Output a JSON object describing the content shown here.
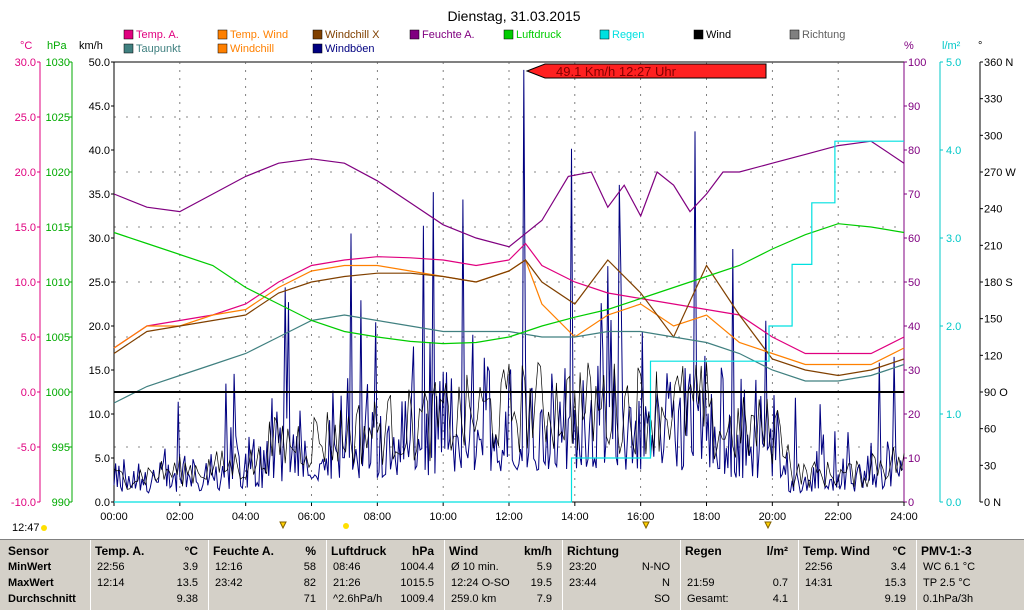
{
  "title": "Dienstag, 31.03.2015",
  "current_time": "12:47",
  "chart_data": {
    "type": "line",
    "x_ticks": [
      "00:00",
      "02:00",
      "04:00",
      "06:00",
      "08:00",
      "10:00",
      "12:00",
      "14:00",
      "16:00",
      "18:00",
      "20:00",
      "22:00",
      "24:00"
    ],
    "axes": {
      "temp_c": {
        "unit": "°C",
        "color": "#e0007f",
        "ticks": [
          "30.0",
          "25.0",
          "20.0",
          "15.0",
          "10.0",
          "5.0",
          "0.0",
          "-5.0",
          "-10.0"
        ],
        "ylim": [
          -10,
          30
        ]
      },
      "pressure_hpa": {
        "unit": "hPa",
        "color": "#00aa00",
        "ticks": [
          "1030",
          "1025",
          "1020",
          "1015",
          "1010",
          "1005",
          "1000",
          "995",
          "990"
        ],
        "ylim": [
          990,
          1030
        ]
      },
      "wind_kmh": {
        "unit": "km/h",
        "color": "#000000",
        "ticks": [
          "50.0",
          "45.0",
          "40.0",
          "35.0",
          "30.0",
          "25.0",
          "20.0",
          "15.0",
          "10.0",
          "5.0",
          "0.0"
        ],
        "ylim": [
          0,
          50
        ]
      },
      "humidity_pct": {
        "unit": "%",
        "color": "#800080",
        "ticks": [
          "100",
          "90",
          "80",
          "70",
          "60",
          "50",
          "40",
          "30",
          "20",
          "10",
          "0"
        ],
        "ylim": [
          0,
          100
        ]
      },
      "rain_lm2": {
        "unit": "l/m²",
        "color": "#00c8c8",
        "ticks": [
          "5.0",
          "4.0",
          "3.0",
          "2.0",
          "1.0",
          "0.0"
        ],
        "ylim": [
          0,
          5
        ]
      },
      "direction_deg": {
        "unit": "°",
        "color": "#000000",
        "ticks": [
          "360 N",
          "330",
          "300",
          "270 W",
          "240",
          "210",
          "180 S",
          "150",
          "120",
          "90 O",
          "60",
          "30",
          "0 N"
        ],
        "ylim": [
          0,
          360
        ]
      }
    },
    "legend": [
      {
        "name": "Temp. A.",
        "color": "#e0007f"
      },
      {
        "name": "Temp. Wind",
        "color": "#ff8000"
      },
      {
        "name": "Windchill X",
        "color": "#804000"
      },
      {
        "name": "Feuchte A.",
        "color": "#800080"
      },
      {
        "name": "Luftdruck",
        "color": "#00cc00"
      },
      {
        "name": "Regen",
        "color": "#00e0e0"
      },
      {
        "name": "Wind",
        "color": "#000000"
      },
      {
        "name": "Richtung",
        "color": "#808080"
      },
      {
        "name": "Taupunkt",
        "color": "#408080"
      },
      {
        "name": "Windchill",
        "color": "#ff8000"
      },
      {
        "name": "Windböen",
        "color": "#000080"
      }
    ],
    "annotation": "49.1 Km/h 12:27 Uhr",
    "series": [
      {
        "name": "Temp. A.",
        "axis": "temp_c",
        "color": "#e0007f",
        "x": [
          0,
          1,
          2,
          3,
          4,
          5,
          6,
          7,
          8,
          9,
          10,
          11,
          12,
          12.5,
          13,
          14,
          15,
          16,
          17,
          18,
          19,
          20,
          21,
          22,
          23,
          24
        ],
        "y": [
          4.0,
          6.0,
          6.5,
          7.0,
          8.0,
          10.0,
          11.5,
          12.0,
          12.3,
          12.2,
          12.0,
          11.5,
          12.0,
          13.5,
          11.5,
          10.0,
          9.0,
          8.5,
          8.0,
          7.5,
          7.0,
          5.0,
          3.5,
          3.5,
          3.5,
          5.0
        ]
      },
      {
        "name": "Temp. Wind",
        "axis": "temp_c",
        "color": "#ff8000",
        "x": [
          0,
          1,
          2,
          3,
          4,
          5,
          6,
          7,
          8,
          9,
          10,
          11,
          12,
          12.5,
          13,
          14,
          15,
          16,
          17,
          18,
          19,
          20,
          21,
          22,
          23,
          24
        ],
        "y": [
          4.0,
          6.0,
          6.0,
          7.0,
          7.5,
          9.5,
          11.0,
          11.5,
          11.5,
          11.0,
          10.5,
          10.0,
          11.0,
          12.0,
          8.0,
          5.0,
          7.0,
          8.0,
          6.0,
          7.0,
          4.5,
          3.5,
          2.5,
          2.5,
          2.5,
          4.0
        ]
      },
      {
        "name": "Windchill X",
        "axis": "temp_c",
        "color": "#804000",
        "x": [
          0,
          1,
          2,
          3,
          4,
          5,
          6,
          7,
          8,
          9,
          10,
          11,
          12,
          12.5,
          13,
          14,
          15,
          16,
          17,
          18,
          19,
          20,
          21,
          22,
          23,
          24
        ],
        "y": [
          3.5,
          5.5,
          6.0,
          6.5,
          7.0,
          9.0,
          10.0,
          10.5,
          10.8,
          10.8,
          10.5,
          10.0,
          11.0,
          12.0,
          10.0,
          8.0,
          12.0,
          9.0,
          5.0,
          11.5,
          7.0,
          3.0,
          2.0,
          1.5,
          2.0,
          3.0
        ]
      },
      {
        "name": "Taupunkt",
        "axis": "temp_c",
        "color": "#408080",
        "x": [
          0,
          1,
          2,
          3,
          4,
          5,
          6,
          7,
          8,
          9,
          10,
          11,
          12,
          13,
          14,
          15,
          16,
          17,
          18,
          19,
          20,
          21,
          22,
          23,
          24
        ],
        "y": [
          -1.0,
          0.5,
          1.5,
          2.5,
          3.5,
          5.0,
          6.5,
          7.0,
          6.5,
          6.0,
          5.5,
          5.5,
          5.5,
          5.0,
          5.0,
          5.5,
          5.5,
          5.0,
          4.5,
          3.5,
          2.0,
          1.0,
          1.0,
          1.5,
          2.5
        ]
      },
      {
        "name": "Feuchte A.",
        "axis": "humidity_pct",
        "color": "#800080",
        "x": [
          0,
          1,
          2,
          3,
          4,
          5,
          6,
          7,
          8,
          9,
          10,
          11,
          12,
          13,
          13.8,
          14.5,
          15,
          15.5,
          16,
          16.5,
          17,
          17.5,
          18,
          18.5,
          19,
          20,
          21,
          22,
          23,
          24
        ],
        "y": [
          70,
          67,
          66,
          70,
          74,
          77,
          78,
          77,
          73,
          68,
          63,
          60,
          58,
          64,
          74,
          75,
          67,
          72,
          65,
          75,
          72,
          66,
          70,
          75,
          75,
          77,
          79,
          81,
          82,
          77
        ]
      },
      {
        "name": "Luftdruck",
        "axis": "pressure_hpa",
        "color": "#00cc00",
        "x": [
          0,
          1,
          2,
          3,
          4,
          5,
          6,
          7,
          8,
          9,
          10,
          11,
          12,
          13,
          14,
          15,
          16,
          17,
          18,
          19,
          20,
          21,
          22,
          23,
          24
        ],
        "y": [
          1014.5,
          1013.5,
          1012.5,
          1011.5,
          1009.5,
          1008.0,
          1006.5,
          1005.5,
          1005.0,
          1004.6,
          1004.4,
          1004.5,
          1005.0,
          1006.0,
          1006.8,
          1007.5,
          1008.5,
          1009.5,
          1010.5,
          1011.5,
          1013.0,
          1014.3,
          1015.3,
          1015.0,
          1014.5
        ]
      },
      {
        "name": "Regen",
        "axis": "rain_lm2",
        "color": "#00e0e0",
        "x": [
          0,
          13.9,
          13.9,
          16.3,
          16.3,
          19.9,
          19.9,
          20.6,
          20.6,
          21.2,
          21.2,
          21.9,
          21.9,
          24
        ],
        "y": [
          0,
          0,
          0.5,
          0.5,
          1.6,
          1.6,
          2.0,
          2.0,
          2.7,
          2.7,
          3.4,
          3.4,
          4.1,
          4.1
        ]
      }
    ],
    "windboeen_max": 49.1,
    "windboeen_max_time": 12.45
  },
  "table": {
    "row_labels": [
      "Sensor",
      "MinWert",
      "MaxWert",
      "Durchschnitt"
    ],
    "columns": [
      {
        "title": "Temp. A.",
        "unit": "°C",
        "rows": [
          [
            "22:56",
            "3.9"
          ],
          [
            "12:14",
            "13.5"
          ],
          [
            "",
            "9.38"
          ]
        ]
      },
      {
        "title": "Feuchte A.",
        "unit": "%",
        "rows": [
          [
            "12:16",
            "58"
          ],
          [
            "23:42",
            "82"
          ],
          [
            "",
            "71"
          ]
        ]
      },
      {
        "title": "Luftdruck",
        "unit": "hPa",
        "rows": [
          [
            "08:46",
            "1004.4"
          ],
          [
            "21:26",
            "1015.5"
          ],
          [
            "^2.6hPa/h",
            "1009.4"
          ]
        ]
      },
      {
        "title": "Wind",
        "unit": "km/h",
        "rows": [
          [
            "Ø 10 min.",
            "5.9"
          ],
          [
            "12:24  O-SO",
            "19.5"
          ],
          [
            "259.0 km",
            "7.9"
          ]
        ]
      },
      {
        "title": "Richtung",
        "unit": "",
        "rows": [
          [
            "23:20",
            "N-NO"
          ],
          [
            "23:44",
            "N"
          ],
          [
            "",
            "SO"
          ]
        ]
      },
      {
        "title": "Regen",
        "unit": "l/m²",
        "rows": [
          [
            "",
            ""
          ],
          [
            "21:59",
            "0.7"
          ],
          [
            "Gesamt:",
            "4.1"
          ]
        ]
      },
      {
        "title": "Temp. Wind",
        "unit": "°C",
        "rows": [
          [
            "22:56",
            "3.4"
          ],
          [
            "14:31",
            "15.3"
          ],
          [
            "",
            "9.19"
          ]
        ]
      },
      {
        "title": "PMV-1:-3",
        "unit": "",
        "rows": [
          [
            "WC 6.1 °C",
            ""
          ],
          [
            "TP 2.5 °C",
            ""
          ],
          [
            "0.1hPa/3h",
            ""
          ]
        ]
      }
    ]
  }
}
